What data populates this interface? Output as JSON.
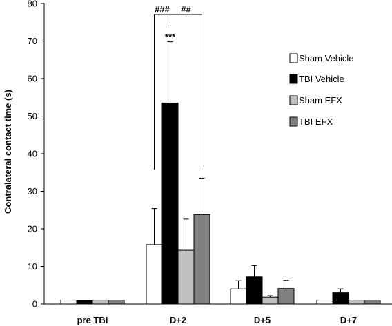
{
  "chart_data": {
    "type": "bar",
    "ylabel": "Contralateral contact time (s)",
    "xlabel": "",
    "ylim": [
      0,
      80
    ],
    "yticks": [
      0,
      10,
      20,
      30,
      40,
      50,
      60,
      70,
      80
    ],
    "categories": [
      "pre TBI",
      "D+2",
      "D+5",
      "D+7"
    ],
    "series": [
      {
        "name": "Sham Vehicle",
        "color": "#ffffff",
        "values": [
          1,
          15.8,
          4,
          1
        ],
        "errors": [
          0,
          9.6,
          2.2,
          0
        ]
      },
      {
        "name": "TBI Vehicle",
        "color": "#000000",
        "values": [
          1,
          53.5,
          7.2,
          3
        ],
        "errors": [
          0,
          16.3,
          3,
          1
        ]
      },
      {
        "name": "Sham EFX",
        "color": "#bfbfbf",
        "values": [
          1,
          14.3,
          1.8,
          1
        ],
        "errors": [
          0,
          8.3,
          0.4,
          0
        ]
      },
      {
        "name": "TBI EFX",
        "color": "#808080",
        "values": [
          1,
          23.8,
          4.1,
          1
        ],
        "errors": [
          0,
          9.7,
          2.2,
          0
        ]
      }
    ],
    "grid": false,
    "legend_position": "right",
    "annotations": {
      "significance_star": "***",
      "hash_left": "###",
      "hash_right": "##"
    }
  }
}
